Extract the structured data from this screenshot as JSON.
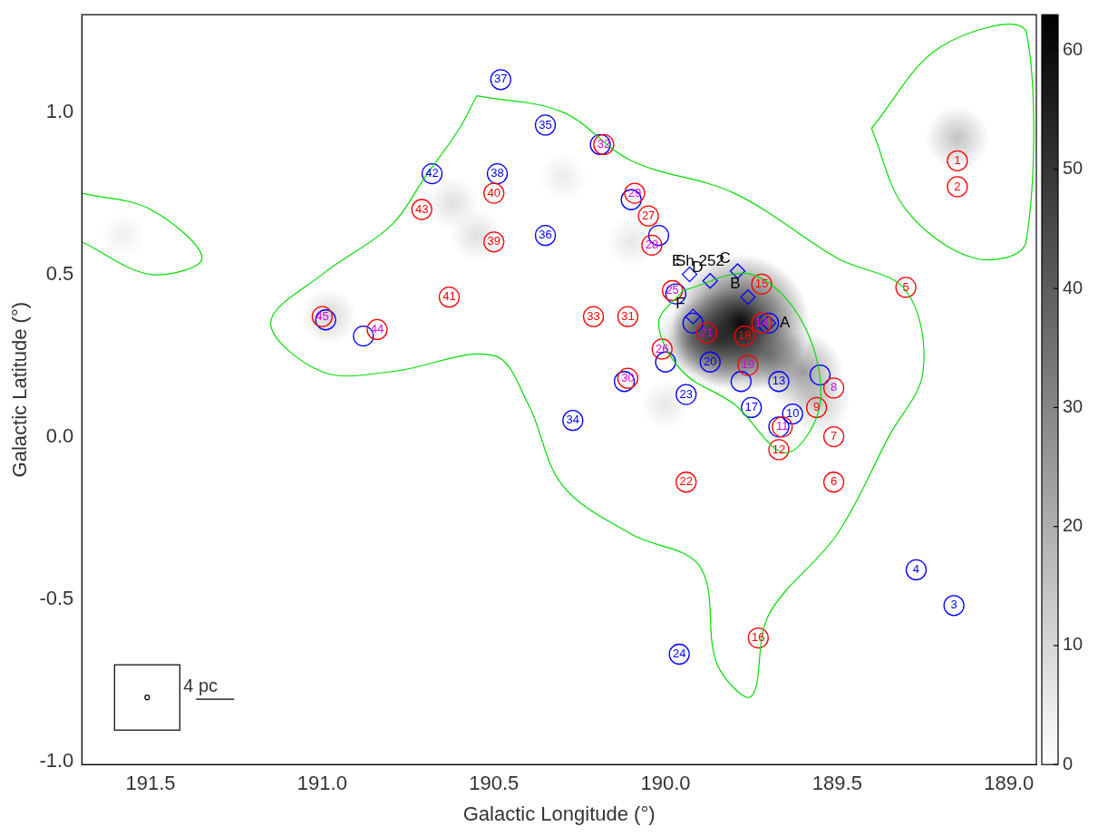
{
  "chart_data": {
    "type": "scatter",
    "x_label": "Galactic Longitude (°)",
    "y_label": "Galactic Latitude (°)",
    "xlim": [
      191.7,
      188.92
    ],
    "xticks": [
      191.5,
      {
        "value": 191,
        "label": "191.0"
      },
      190.5,
      {
        "value": 190,
        "label": "190.0"
      },
      189.5,
      {
        "value": 189,
        "label": "189.0"
      }
    ],
    "ylim": [
      -1.01,
      1.3
    ],
    "yticks": [
      {
        "value": -1,
        "label": "-1.0"
      },
      -0.5,
      {
        "value": 0,
        "label": "0.0"
      },
      0.5,
      {
        "value": 1,
        "label": "1.0"
      }
    ],
    "grid": false,
    "series": [
      {
        "color": "#ff0000",
        "marker": "circle",
        "values": [
          {
            "x": 189.15,
            "y": 0.85,
            "label": "1"
          },
          {
            "x": 189.15,
            "y": 0.77,
            "label": "2"
          },
          {
            "x": 189.3,
            "y": 0.46,
            "label": "5"
          },
          {
            "x": 189.51,
            "y": -0.14,
            "label": "6"
          },
          {
            "x": 189.51,
            "y": 0.0,
            "label": "7"
          },
          {
            "x": 189.51,
            "y": 0.15,
            "label": "8"
          },
          {
            "x": 189.56,
            "y": 0.09,
            "label": "9"
          },
          {
            "x": 189.66,
            "y": 0.03,
            "label": "11"
          },
          {
            "x": 189.67,
            "y": -0.04,
            "label": "12"
          },
          {
            "x": 189.72,
            "y": 0.35,
            "label": "14"
          },
          {
            "x": 189.72,
            "y": 0.47,
            "label": "15"
          },
          {
            "x": 189.73,
            "y": -0.62,
            "label": "16"
          },
          {
            "x": 189.77,
            "y": 0.31,
            "label": "18"
          },
          {
            "x": 189.76,
            "y": 0.22,
            "label": "19"
          },
          {
            "x": 189.88,
            "y": 0.32,
            "label": "21"
          },
          {
            "x": 189.94,
            "y": -0.14,
            "label": "22"
          },
          {
            "x": 189.98,
            "y": 0.45,
            "label": "25"
          },
          {
            "x": 190.01,
            "y": 0.27,
            "label": "26"
          },
          {
            "x": 190.05,
            "y": 0.68,
            "label": "27"
          },
          {
            "x": 190.04,
            "y": 0.59,
            "label": "28"
          },
          {
            "x": 190.09,
            "y": 0.75,
            "label": "29"
          },
          {
            "x": 190.11,
            "y": 0.18,
            "label": "30"
          },
          {
            "x": 190.11,
            "y": 0.37,
            "label": "31"
          },
          {
            "x": 190.18,
            "y": 0.9,
            "label": "32"
          },
          {
            "x": 190.21,
            "y": 0.37,
            "label": "33"
          },
          {
            "x": 190.5,
            "y": 0.6,
            "label": "39"
          },
          {
            "x": 190.5,
            "y": 0.75,
            "label": "40"
          },
          {
            "x": 190.63,
            "y": 0.43,
            "label": "41"
          },
          {
            "x": 190.71,
            "y": 0.7,
            "label": "43"
          },
          {
            "x": 190.84,
            "y": 0.33,
            "label": "44"
          },
          {
            "x": 191.0,
            "y": 0.37,
            "label": "45"
          }
        ]
      },
      {
        "color": "#0000ff",
        "marker": "circle",
        "values": [
          {
            "x": 189.16,
            "y": -0.52,
            "label": "3"
          },
          {
            "x": 189.27,
            "y": -0.41,
            "label": "4"
          },
          {
            "x": 189.55,
            "y": 0.19,
            "label": "8"
          },
          {
            "x": 189.63,
            "y": 0.07,
            "label": "10"
          },
          {
            "x": 189.67,
            "y": 0.03,
            "label": "11"
          },
          {
            "x": 189.67,
            "y": 0.17,
            "label": "13"
          },
          {
            "x": 189.7,
            "y": 0.35,
            "label": "14"
          },
          {
            "x": 189.75,
            "y": 0.09,
            "label": "17"
          },
          {
            "x": 189.78,
            "y": 0.17,
            "label": "19"
          },
          {
            "x": 189.87,
            "y": 0.23,
            "label": "20"
          },
          {
            "x": 189.92,
            "y": 0.35,
            "label": "21"
          },
          {
            "x": 189.94,
            "y": 0.13,
            "label": "23"
          },
          {
            "x": 189.96,
            "y": -0.67,
            "label": "24"
          },
          {
            "x": 189.97,
            "y": 0.44,
            "label": "25"
          },
          {
            "x": 190.0,
            "y": 0.23,
            "label": "26"
          },
          {
            "x": 190.02,
            "y": 0.62,
            "label": "28"
          },
          {
            "x": 190.1,
            "y": 0.73,
            "label": "29"
          },
          {
            "x": 190.12,
            "y": 0.17,
            "label": "30"
          },
          {
            "x": 190.19,
            "y": 0.9,
            "label": "32"
          },
          {
            "x": 190.27,
            "y": 0.05,
            "label": "34"
          },
          {
            "x": 190.35,
            "y": 0.96,
            "label": "35"
          },
          {
            "x": 190.35,
            "y": 0.62,
            "label": "36"
          },
          {
            "x": 190.48,
            "y": 1.1,
            "label": "37"
          },
          {
            "x": 190.49,
            "y": 0.81,
            "label": "38"
          },
          {
            "x": 190.68,
            "y": 0.81,
            "label": "42"
          },
          {
            "x": 190.88,
            "y": 0.31,
            "label": "44"
          },
          {
            "x": 190.99,
            "y": 0.36,
            "label": "45"
          }
        ]
      },
      {
        "color": "#0000ff",
        "marker": "diamond",
        "values": [
          {
            "x": 189.7,
            "y": 0.35,
            "label": "A"
          },
          {
            "x": 189.76,
            "y": 0.43,
            "label": "B"
          },
          {
            "x": 189.79,
            "y": 0.51,
            "label": "C"
          },
          {
            "x": 189.87,
            "y": 0.48,
            "label": "D"
          },
          {
            "x": 189.93,
            "y": 0.5,
            "label": "E"
          },
          {
            "x": 189.92,
            "y": 0.37,
            "label": "F"
          }
        ]
      }
    ],
    "image": [
      {
        "l": 189.78,
        "b": 0.35,
        "intensity": 60
      },
      {
        "l": 189.85,
        "b": 0.3,
        "intensity": 35
      },
      {
        "l": 189.6,
        "b": 0.2,
        "intensity": 25
      },
      {
        "l": 189.7,
        "b": 0.25,
        "intensity": 20
      },
      {
        "l": 189.92,
        "b": 0.3,
        "intensity": 20
      },
      {
        "l": 189.55,
        "b": 0.1,
        "intensity": 12
      },
      {
        "l": 189.15,
        "b": 0.92,
        "intensity": 15
      },
      {
        "l": 190.98,
        "b": 0.37,
        "intensity": 10
      },
      {
        "l": 190.55,
        "b": 0.62,
        "intensity": 8
      },
      {
        "l": 190.62,
        "b": 0.72,
        "intensity": 8
      },
      {
        "l": 190.1,
        "b": 0.6,
        "intensity": 6
      },
      {
        "l": 190.3,
        "b": 0.8,
        "intensity": 5
      },
      {
        "l": 190.0,
        "b": 0.1,
        "intensity": 6
      },
      {
        "l": 191.58,
        "b": 0.62,
        "intensity": 4
      }
    ],
    "contours": {
      "color": "#00dd00",
      "paths": [
        [
          [
            190.55,
            1.05
          ],
          [
            190.3,
            1.0
          ],
          [
            190.1,
            0.85
          ],
          [
            189.8,
            0.75
          ],
          [
            189.5,
            0.55
          ],
          [
            189.3,
            0.45
          ],
          [
            189.25,
            0.2
          ],
          [
            189.35,
            0.0
          ],
          [
            189.5,
            -0.3
          ],
          [
            189.7,
            -0.55
          ],
          [
            189.75,
            -0.8
          ],
          [
            189.85,
            -0.7
          ],
          [
            189.9,
            -0.4
          ],
          [
            190.1,
            -0.3
          ],
          [
            190.3,
            -0.15
          ],
          [
            190.4,
            0.1
          ],
          [
            190.5,
            0.25
          ],
          [
            190.8,
            0.2
          ],
          [
            191.0,
            0.2
          ],
          [
            191.15,
            0.35
          ],
          [
            191.0,
            0.5
          ],
          [
            190.8,
            0.65
          ],
          [
            190.7,
            0.8
          ],
          [
            190.6,
            0.95
          ],
          [
            190.55,
            1.05
          ]
        ],
        [
          [
            189.95,
            0.45
          ],
          [
            189.75,
            0.5
          ],
          [
            189.6,
            0.35
          ],
          [
            189.55,
            0.1
          ],
          [
            189.65,
            -0.05
          ],
          [
            189.8,
            0.1
          ],
          [
            189.95,
            0.2
          ],
          [
            190.02,
            0.35
          ],
          [
            189.95,
            0.45
          ]
        ],
        [
          [
            189.4,
            0.95
          ],
          [
            189.2,
            1.2
          ],
          [
            188.95,
            1.25
          ],
          [
            188.95,
            0.6
          ],
          [
            189.1,
            0.55
          ],
          [
            189.3,
            0.7
          ],
          [
            189.4,
            0.95
          ]
        ],
        [
          [
            191.7,
            0.75
          ],
          [
            191.5,
            0.7
          ],
          [
            191.35,
            0.55
          ],
          [
            191.5,
            0.5
          ],
          [
            191.7,
            0.6
          ]
        ]
      ]
    },
    "colorbar": {
      "range": [
        0,
        63
      ],
      "ticks": [
        0,
        10,
        20,
        30,
        40,
        50,
        60
      ]
    },
    "annotations": [
      {
        "text": "Sh 252",
        "x": 189.9,
        "y": 0.54
      },
      {
        "text": "4 pc"
      }
    ]
  }
}
